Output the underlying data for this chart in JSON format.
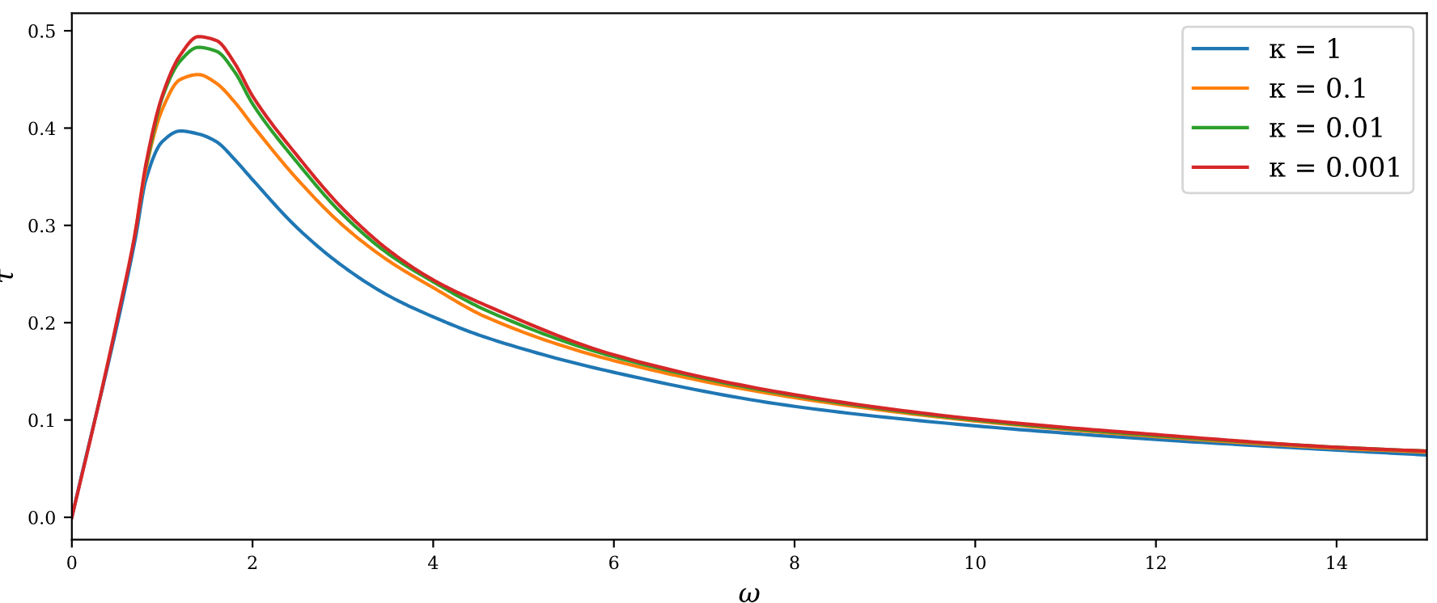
{
  "chart_data": {
    "type": "line",
    "xlabel": "ω",
    "ylabel": "τ",
    "x": [
      0,
      0.29,
      0.52,
      0.7,
      0.82,
      1.0,
      1.2,
      1.4,
      1.6,
      1.8,
      2.0,
      2.5,
      3,
      3.5,
      4,
      4.58,
      6,
      8,
      10,
      12,
      14,
      15
    ],
    "series": [
      {
        "name": "κ = 1",
        "color": "#1f77b4",
        "values": [
          0,
          null,
          null,
          0.285,
          0.347,
          0.386,
          0.397,
          0.394,
          0.386,
          0.368,
          0.347,
          0.297,
          0.258,
          0.228,
          0.206,
          0.185,
          0.149,
          0.114,
          0.094,
          0.08,
          0.069,
          0.064
        ]
      },
      {
        "name": "κ = 0.1",
        "color": "#ff7f0e",
        "values": [
          null,
          null,
          null,
          0.292,
          0.358,
          0.419,
          0.45,
          0.455,
          0.446,
          0.427,
          0.403,
          0.347,
          0.3,
          0.264,
          0.236,
          0.206,
          0.161,
          0.123,
          0.099,
          0.083,
          0.071,
          0.067
        ]
      },
      {
        "name": "κ = 0.01",
        "color": "#2ca02c",
        "values": [
          null,
          null,
          null,
          null,
          0.361,
          0.431,
          0.469,
          0.483,
          0.479,
          0.458,
          0.425,
          0.364,
          0.311,
          0.271,
          0.242,
          0.213,
          0.165,
          0.125,
          0.1,
          0.084,
          0.072,
          0.068
        ]
      },
      {
        "name": "κ = 0.001",
        "color": "#d62728",
        "values": [
          0,
          0.114,
          0.211,
          0.292,
          0.363,
          0.433,
          0.475,
          0.494,
          0.49,
          0.467,
          0.433,
          0.371,
          0.317,
          0.275,
          0.244,
          0.218,
          0.167,
          0.126,
          0.101,
          0.085,
          0.072,
          0.068
        ]
      }
    ],
    "xlim": [
      0,
      15
    ],
    "xticks": [
      0,
      2,
      4,
      6,
      8,
      10,
      12,
      14
    ],
    "ylim": [
      -0.023,
      0.518
    ],
    "yticks": [
      {
        "value": 0,
        "label": "0.0"
      },
      0.1,
      0.2,
      0.3,
      0.4,
      0.5
    ],
    "legend": "top right",
    "grid": false
  }
}
